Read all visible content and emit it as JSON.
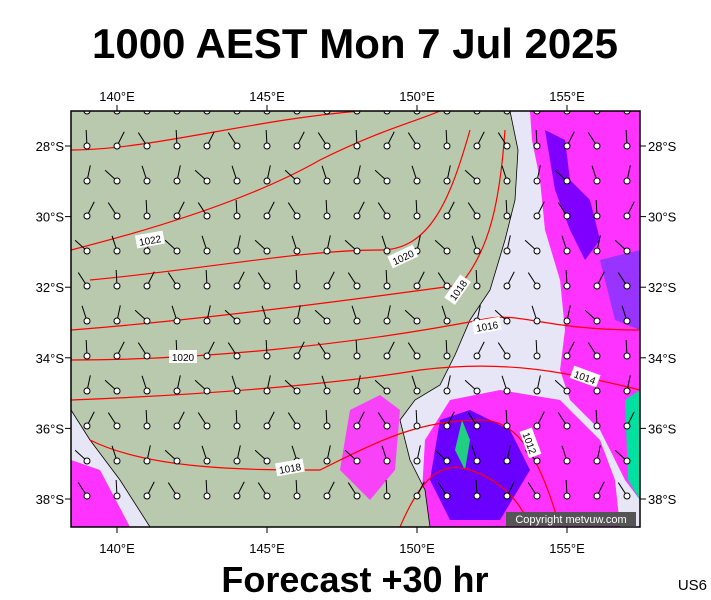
{
  "header": {
    "title": "1000 AEST Mon 7 Jul 2025"
  },
  "map": {
    "lon_ticks": [
      "140°E",
      "145°E",
      "150°E",
      "155°E"
    ],
    "lat_ticks": [
      "28°S",
      "30°S",
      "32°S",
      "34°S",
      "36°S",
      "38°S"
    ],
    "isobar_labels": [
      "1022",
      "1020",
      "1018",
      "1016",
      "1014",
      "1012",
      "1020",
      "1018"
    ],
    "copyright": "Copyright metvuw.com"
  },
  "footer": {
    "forecast": "Forecast +30 hr",
    "code": "US6"
  }
}
